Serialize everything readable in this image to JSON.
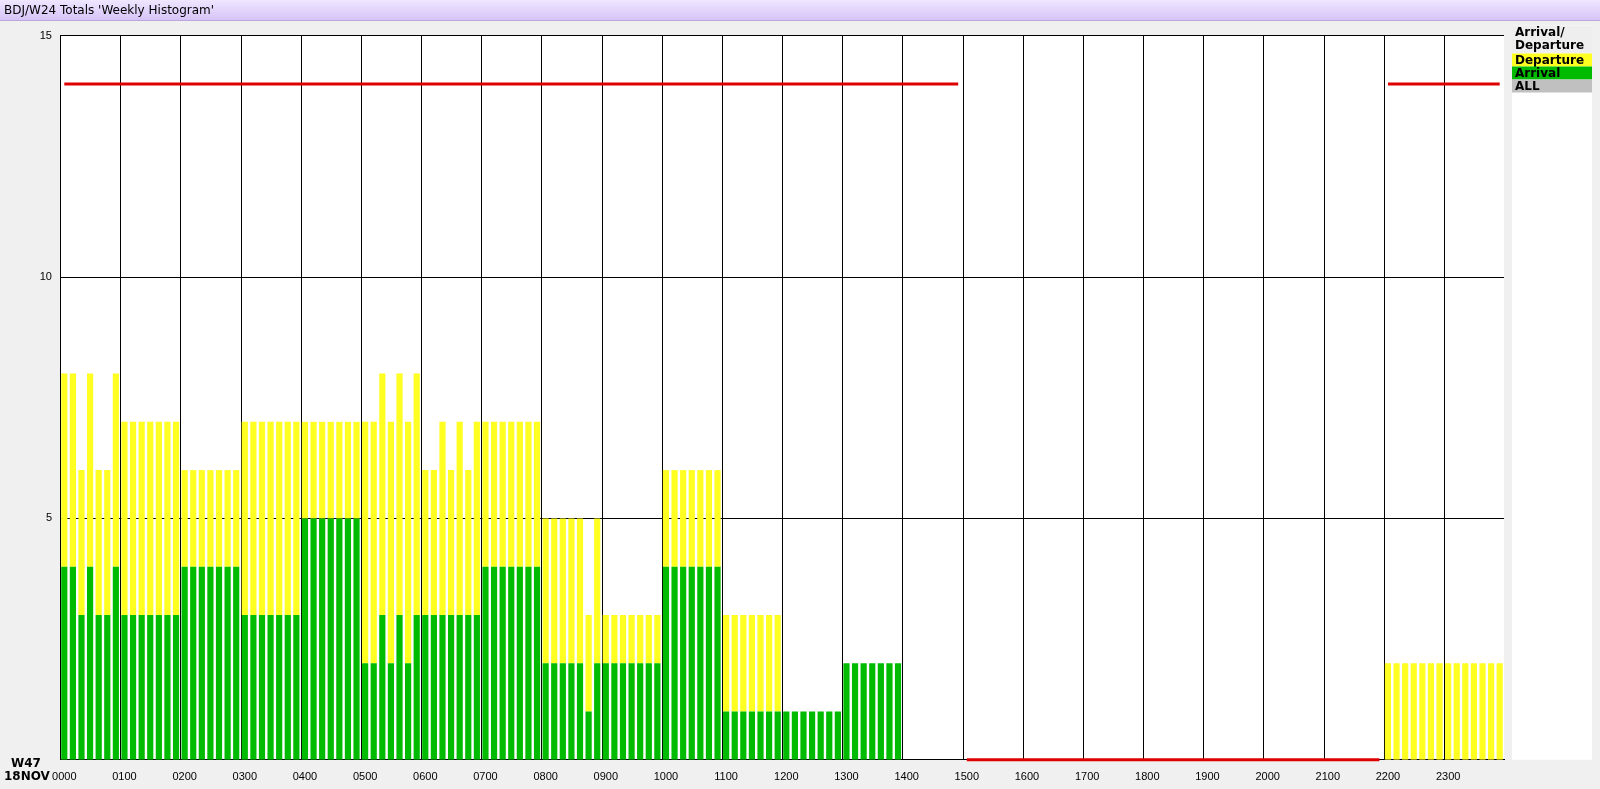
{
  "chart_data": {
    "type": "bar",
    "title": "BDJ/W24 Totals 'Weekly Histogram'",
    "legend_title": "Arrival/ Departure",
    "stacked": true,
    "grid": true,
    "legend": "right",
    "ylim": [
      0,
      15
    ],
    "yticks": [
      5,
      10,
      15
    ],
    "annotations": [
      "W47 18NOV",
      "ALL"
    ],
    "categories": [
      "0000",
      null,
      null,
      null,
      null,
      null,
      null,
      "0100",
      null,
      null,
      null,
      null,
      null,
      null,
      "0200",
      null,
      null,
      null,
      null,
      null,
      null,
      "0300",
      null,
      null,
      null,
      null,
      null,
      null,
      "0400",
      null,
      null,
      null,
      null,
      null,
      null,
      "0500",
      null,
      null,
      null,
      null,
      null,
      null,
      "0600",
      null,
      null,
      null,
      null,
      null,
      null,
      "0700",
      null,
      null,
      null,
      null,
      null,
      null,
      "0800",
      null,
      null,
      null,
      null,
      null,
      null,
      "0900",
      null,
      null,
      null,
      null,
      null,
      null,
      "1000",
      null,
      null,
      null,
      null,
      null,
      null,
      "1100",
      null,
      null,
      null,
      null,
      null,
      null,
      "1200",
      null,
      null,
      null,
      null,
      null,
      null,
      "1300",
      null,
      null,
      null,
      null,
      null,
      null,
      "1400",
      null,
      null,
      null,
      null,
      null,
      null,
      "1500",
      null,
      null,
      null,
      null,
      null,
      null,
      "1600",
      null,
      null,
      null,
      null,
      null,
      null,
      "1700",
      null,
      null,
      null,
      null,
      null,
      null,
      "1800",
      null,
      null,
      null,
      null,
      null,
      null,
      "1900",
      null,
      null,
      null,
      null,
      null,
      null,
      "2000",
      null,
      null,
      null,
      null,
      null,
      null,
      "2100",
      null,
      null,
      null,
      null,
      null,
      null,
      "2200",
      null,
      null,
      null,
      null,
      null,
      null,
      "2300",
      null,
      null,
      null,
      null,
      null,
      null
    ],
    "series": [
      {
        "name": "Arrival",
        "color": "#00bb00",
        "values": [
          4,
          4,
          3,
          4,
          3,
          3,
          4,
          3,
          3,
          3,
          3,
          3,
          3,
          3,
          4,
          4,
          4,
          4,
          4,
          4,
          4,
          3,
          3,
          3,
          3,
          3,
          3,
          3,
          5,
          5,
          5,
          5,
          5,
          5,
          5,
          2,
          2,
          3,
          2,
          3,
          2,
          3,
          3,
          3,
          3,
          3,
          3,
          3,
          3,
          4,
          4,
          4,
          4,
          4,
          4,
          4,
          2,
          2,
          2,
          2,
          2,
          1,
          2,
          2,
          2,
          2,
          2,
          2,
          2,
          2,
          4,
          4,
          4,
          4,
          4,
          4,
          4,
          1,
          1,
          1,
          1,
          1,
          1,
          1,
          1,
          1,
          1,
          1,
          1,
          1,
          1,
          2,
          2,
          2,
          2,
          2,
          2,
          2,
          0,
          0,
          0,
          0,
          0,
          0,
          0,
          0,
          0,
          0,
          0,
          0,
          0,
          0,
          0,
          0,
          0,
          0,
          0,
          0,
          0,
          0,
          0,
          0,
          0,
          0,
          0,
          0,
          0,
          0,
          0,
          0,
          0,
          0,
          0,
          0,
          0,
          0,
          0,
          0,
          0,
          0,
          0,
          0,
          0,
          0,
          0,
          0,
          0,
          0,
          0,
          0,
          0,
          0,
          0,
          0,
          0,
          0,
          0,
          0,
          0,
          0,
          0,
          0,
          0,
          0,
          0,
          0,
          0,
          0
        ]
      },
      {
        "name": "Departure",
        "color": "#ffff22",
        "values": [
          4,
          4,
          3,
          4,
          3,
          3,
          4,
          4,
          4,
          4,
          4,
          4,
          4,
          4,
          2,
          2,
          2,
          2,
          2,
          2,
          2,
          4,
          4,
          4,
          4,
          4,
          4,
          4,
          2,
          2,
          2,
          2,
          2,
          2,
          2,
          5,
          5,
          5,
          5,
          5,
          5,
          5,
          3,
          3,
          4,
          3,
          4,
          3,
          4,
          3,
          3,
          3,
          3,
          3,
          3,
          3,
          3,
          3,
          3,
          3,
          3,
          2,
          3,
          1,
          1,
          1,
          1,
          1,
          1,
          1,
          2,
          2,
          2,
          2,
          2,
          2,
          2,
          2,
          2,
          2,
          2,
          2,
          2,
          2,
          0,
          0,
          0,
          0,
          0,
          0,
          0,
          0,
          0,
          0,
          0,
          0,
          0,
          0,
          0,
          0,
          0,
          0,
          0,
          0,
          0,
          0,
          0,
          0,
          0,
          0,
          0,
          0,
          0,
          0,
          0,
          0,
          0,
          0,
          0,
          0,
          0,
          0,
          0,
          0,
          0,
          0,
          0,
          0,
          0,
          0,
          0,
          0,
          0,
          0,
          0,
          0,
          0,
          0,
          0,
          0,
          0,
          0,
          0,
          0,
          0,
          0,
          0,
          0,
          0,
          0,
          0,
          0,
          0,
          0,
          2,
          2,
          2,
          2,
          2,
          2,
          2,
          2,
          2,
          2,
          2,
          2,
          2,
          2
        ]
      },
      {
        "type": "step",
        "color": "#e00000",
        "values": [
          14,
          14,
          14,
          14,
          14,
          14,
          14,
          14,
          14,
          14,
          14,
          14,
          14,
          14,
          14,
          14,
          14,
          14,
          14,
          14,
          14,
          14,
          14,
          14,
          14,
          14,
          14,
          14,
          14,
          14,
          14,
          14,
          14,
          14,
          14,
          14,
          14,
          14,
          14,
          14,
          14,
          14,
          14,
          14,
          14,
          14,
          14,
          14,
          14,
          14,
          14,
          14,
          14,
          14,
          14,
          14,
          14,
          14,
          14,
          14,
          14,
          14,
          14,
          14,
          14,
          14,
          14,
          14,
          14,
          14,
          14,
          14,
          14,
          14,
          14,
          14,
          14,
          14,
          14,
          14,
          14,
          14,
          14,
          14,
          14,
          14,
          14,
          14,
          14,
          14,
          14,
          14,
          14,
          14,
          14,
          14,
          14,
          14,
          14,
          14,
          14,
          14,
          14,
          14,
          14,
          0,
          0,
          0,
          0,
          0,
          0,
          0,
          0,
          0,
          0,
          0,
          0,
          0,
          0,
          0,
          0,
          0,
          0,
          0,
          0,
          0,
          0,
          0,
          0,
          0,
          0,
          0,
          0,
          0,
          0,
          0,
          0,
          0,
          0,
          0,
          0,
          0,
          0,
          0,
          0,
          0,
          0,
          0,
          0,
          0,
          0,
          0,
          0,
          0,
          14,
          14,
          14,
          14,
          14,
          14,
          14,
          14,
          14,
          14,
          14,
          14,
          14,
          14
        ]
      }
    ]
  }
}
